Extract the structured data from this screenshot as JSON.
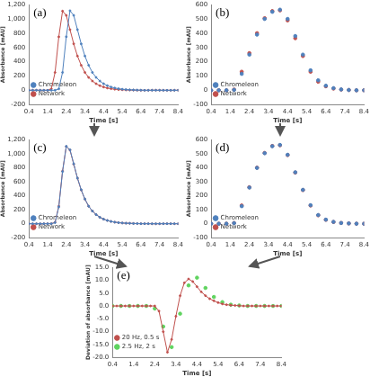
{
  "chart_data": [
    {
      "type": "line",
      "marker": "circle",
      "annotations": [
        "(a)"
      ],
      "x_label": "Time [s]",
      "y_label": "Absorbance [mAU]",
      "x": [
        0.4,
        0.6,
        0.8,
        1,
        1.2,
        1.4,
        1.6,
        1.8,
        2,
        2.2,
        2.4,
        2.6,
        2.8,
        3,
        3.2,
        3.4,
        3.6,
        3.8,
        4,
        4.2,
        4.4,
        4.6,
        4.8,
        5,
        5.2,
        5.4,
        5.6,
        5.8,
        6,
        6.2,
        6.4,
        6.6,
        6.8,
        7,
        7.2,
        7.4,
        7.6,
        7.8,
        8,
        8.2,
        8.4
      ],
      "series": [
        {
          "name": "Chromeleon",
          "color": "#4f81bd",
          "values": [
            0,
            0,
            0,
            0,
            0,
            0,
            0,
            0,
            20,
            250,
            750,
            1115,
            1050,
            850,
            650,
            480,
            350,
            250,
            180,
            130,
            92,
            65,
            46,
            32,
            22,
            15,
            10,
            7,
            5,
            3,
            2,
            0,
            0,
            0,
            0,
            0,
            0,
            0,
            0,
            0,
            0
          ]
        },
        {
          "name": "Network",
          "color": "#c0504d",
          "values": [
            0,
            0,
            0,
            0,
            0,
            0,
            20,
            250,
            750,
            1110,
            1050,
            850,
            650,
            480,
            350,
            250,
            180,
            130,
            92,
            65,
            46,
            32,
            22,
            15,
            10,
            7,
            5,
            3,
            2,
            0,
            0,
            0,
            0,
            0,
            0,
            0,
            0,
            0,
            0,
            0,
            0
          ]
        }
      ],
      "xlim": [
        0.4,
        8.4
      ],
      "xticks": [
        0.4,
        1.4,
        2.4,
        3.4,
        4.4,
        5.4,
        6.4,
        7.4,
        8.4
      ],
      "ylim": [
        -200,
        1200
      ],
      "yticks": [
        -200,
        0,
        200,
        400,
        600,
        800,
        {
          "value": 1000,
          "label": "1,000"
        },
        {
          "value": 1200,
          "label": "1,200"
        }
      ],
      "grid": false,
      "legend": "top-right"
    },
    {
      "type": "scatter",
      "marker": "circle",
      "annotations": [
        "(b)"
      ],
      "x_label": "Time [s]",
      "y_label": "Absorbance [mAU]",
      "x": [
        0.4,
        0.8,
        1.2,
        1.6,
        2,
        2.4,
        2.8,
        3.2,
        3.6,
        4,
        4.4,
        4.8,
        5.2,
        5.6,
        6,
        6.4,
        6.8,
        7.2,
        7.6,
        8,
        8.4
      ],
      "series": [
        {
          "name": "Chromeleon",
          "color": "#4f81bd",
          "values": [
            0,
            0,
            0,
            3,
            115,
            250,
            390,
            500,
            550,
            565,
            500,
            380,
            250,
            140,
            70,
            32,
            15,
            6,
            2,
            0,
            0
          ]
        },
        {
          "name": "Network",
          "color": "#c0504d",
          "values": [
            0,
            0,
            0,
            5,
            130,
            260,
            400,
            505,
            555,
            560,
            490,
            365,
            240,
            130,
            60,
            28,
            12,
            5,
            2,
            0,
            0
          ]
        }
      ],
      "xlim": [
        0.4,
        8.4
      ],
      "xticks": [
        0.4,
        1.4,
        2.4,
        3.4,
        4.4,
        5.4,
        6.4,
        7.4,
        8.4
      ],
      "ylim": [
        -100,
        600
      ],
      "yticks": [
        -100,
        0,
        100,
        200,
        300,
        400,
        500,
        600
      ],
      "grid": false,
      "legend": "top-right"
    },
    {
      "type": "line",
      "marker": "circle",
      "annotations": [
        "(c)"
      ],
      "x_label": "Time [s]",
      "y_label": "Absorbance [mAU]",
      "x": [
        0.4,
        0.6,
        0.8,
        1,
        1.2,
        1.4,
        1.6,
        1.8,
        2,
        2.2,
        2.4,
        2.6,
        2.8,
        3,
        3.2,
        3.4,
        3.6,
        3.8,
        4,
        4.2,
        4.4,
        4.6,
        4.8,
        5,
        5.2,
        5.4,
        5.6,
        5.8,
        6,
        6.2,
        6.4,
        6.6,
        6.8,
        7,
        7.2,
        7.4,
        7.6,
        7.8,
        8,
        8.2,
        8.4
      ],
      "series": [
        {
          "name": "Chromeleon",
          "color": "#4f81bd",
          "values": [
            0,
            0,
            0,
            0,
            0,
            0,
            0,
            15,
            240,
            745,
            1105,
            1055,
            855,
            650,
            485,
            352,
            250,
            180,
            130,
            92,
            65,
            46,
            32,
            22,
            15,
            10,
            7,
            5,
            3,
            2,
            0,
            0,
            0,
            0,
            0,
            0,
            0,
            0,
            0,
            0,
            0
          ]
        },
        {
          "name": "Network",
          "color": "#c0504d",
          "values": [
            0,
            0,
            0,
            0,
            0,
            0,
            0,
            20,
            250,
            750,
            1100,
            1050,
            850,
            650,
            480,
            350,
            250,
            180,
            130,
            92,
            65,
            46,
            32,
            22,
            15,
            10,
            7,
            5,
            3,
            2,
            0,
            0,
            0,
            0,
            0,
            0,
            0,
            0,
            0,
            0,
            0
          ]
        }
      ],
      "xlim": [
        0.4,
        8.4
      ],
      "xticks": [
        0.4,
        1.4,
        2.4,
        3.4,
        4.4,
        5.4,
        6.4,
        7.4,
        8.4
      ],
      "ylim": [
        -200,
        1200
      ],
      "yticks": [
        -200,
        0,
        200,
        400,
        600,
        800,
        {
          "value": 1000,
          "label": "1,000"
        },
        {
          "value": 1200,
          "label": "1,200"
        }
      ],
      "grid": false,
      "legend": "top-right"
    },
    {
      "type": "scatter",
      "marker": "circle",
      "annotations": [
        "(d)"
      ],
      "x_label": "Time [s]",
      "y_label": "Absorbance [mAU]",
      "x": [
        0.4,
        0.8,
        1.2,
        1.6,
        2,
        2.4,
        2.8,
        3.2,
        3.6,
        4,
        4.4,
        4.8,
        5.2,
        5.6,
        6,
        6.4,
        6.8,
        7.2,
        7.6,
        8,
        8.4
      ],
      "series": [
        {
          "name": "Chromeleon",
          "color": "#4f81bd",
          "values": [
            0,
            0,
            0,
            4,
            125,
            258,
            398,
            503,
            553,
            562,
            492,
            367,
            242,
            132,
            62,
            29,
            13,
            5,
            2,
            0,
            0
          ]
        },
        {
          "name": "Network",
          "color": "#c0504d",
          "values": [
            0,
            0,
            0,
            5,
            130,
            260,
            400,
            505,
            555,
            560,
            490,
            365,
            240,
            130,
            60,
            28,
            12,
            5,
            2,
            0,
            0
          ]
        }
      ],
      "xlim": [
        0.4,
        8.4
      ],
      "xticks": [
        0.4,
        1.4,
        2.4,
        3.4,
        4.4,
        5.4,
        6.4,
        7.4,
        8.4
      ],
      "ylim": [
        -100,
        600
      ],
      "yticks": [
        -100,
        0,
        100,
        200,
        300,
        400,
        500,
        600
      ],
      "grid": false,
      "legend": "top-right"
    },
    {
      "type": "line",
      "marker": "circle",
      "annotations": [
        "(e)"
      ],
      "x_label": "Time [s]",
      "y_label": "Deviation of absorbance [mAU]",
      "x": [
        0.4,
        0.6,
        0.8,
        1,
        1.2,
        1.4,
        1.6,
        1.8,
        2,
        2.2,
        2.4,
        2.6,
        2.8,
        3,
        3.2,
        3.4,
        3.6,
        3.8,
        4,
        4.2,
        4.4,
        4.6,
        4.8,
        5,
        5.2,
        5.4,
        5.6,
        5.8,
        6,
        6.2,
        6.4,
        6.6,
        6.8,
        7,
        7.2,
        7.4,
        7.6,
        7.8,
        8,
        8.2,
        8.4
      ],
      "series": [
        {
          "name": "20 Hz, 0.5 s",
          "color": "#c0504d",
          "type": "line",
          "values": [
            0,
            0,
            0,
            0,
            0,
            0,
            0,
            0,
            0,
            0,
            0,
            -2,
            -10,
            -18,
            -13,
            -4,
            4,
            9,
            10.5,
            9.5,
            7.5,
            5.5,
            4,
            2.8,
            2,
            1.3,
            0.8,
            0.5,
            0.3,
            0.2,
            0.1,
            0,
            0,
            0,
            0,
            0,
            0,
            0,
            0,
            0,
            0
          ]
        },
        {
          "name": "2.5 Hz, 2 s",
          "color": "#5fd35f",
          "type": "scatter",
          "values": [
            0,
            null,
            0,
            null,
            0,
            null,
            0,
            null,
            0,
            null,
            -1,
            null,
            -8,
            null,
            -16,
            null,
            -3,
            null,
            8,
            null,
            11,
            null,
            7,
            null,
            3.5,
            null,
            1.5,
            null,
            0.5,
            null,
            0.2,
            null,
            0,
            null,
            0,
            null,
            0,
            null,
            0,
            null,
            0
          ]
        }
      ],
      "xlim": [
        0.4,
        8.4
      ],
      "xticks": [
        0.4,
        1.4,
        2.4,
        3.4,
        4.4,
        5.4,
        6.4,
        7.4,
        8.4
      ],
      "ylim": [
        -20,
        15
      ],
      "yticks": [
        {
          "value": -20,
          "label": "-20.0"
        },
        {
          "value": -15,
          "label": "-15.0"
        },
        {
          "value": -10,
          "label": "-10.0"
        },
        {
          "value": -5,
          "label": "-5.0"
        },
        {
          "value": 0,
          "label": "0.0"
        },
        {
          "value": 5,
          "label": "5.0"
        },
        {
          "value": 10,
          "label": "10.0"
        },
        {
          "value": 15,
          "label": "15.0"
        }
      ],
      "grid": false,
      "legend": "top-right"
    }
  ]
}
